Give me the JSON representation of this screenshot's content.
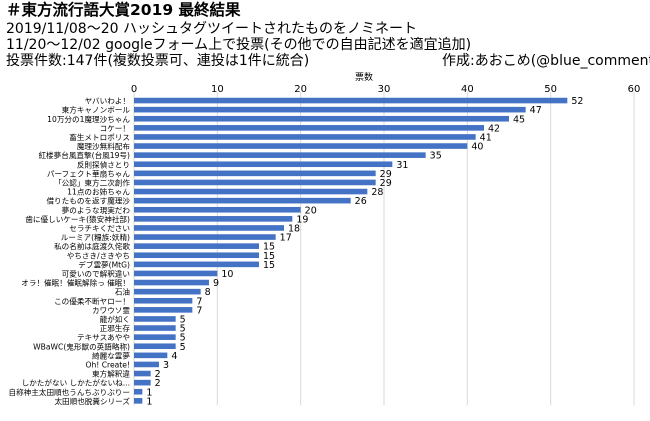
{
  "header": {
    "title": "＃東方流行語大賞2019 最終結果",
    "period": "2019/11/08〜20 ハッシュタグツイートされたものをノミネート",
    "voting": "11/20〜12/02 googleフォーム上で投票(その他での自由記述を適宜追加)",
    "count": "投票件数:147件(複数投票可、連投は1件に統合)",
    "author": "作成:あおこめ(@blue_comment)"
  },
  "colors": {
    "bar": "#4472c4",
    "grid": "#d9d9d9",
    "text": "#000000"
  },
  "chart_data": {
    "type": "bar",
    "orientation": "horizontal",
    "title": "",
    "xlabel": "票数",
    "ylabel": "",
    "xlim": [
      0,
      60
    ],
    "xticks": [
      0,
      10,
      20,
      30,
      40,
      50,
      60
    ],
    "x_axis_position": "top",
    "grid": true,
    "categories": [
      "ヤバいわよ！",
      "東方キャノンボール",
      "10万分の1魔理沙ちゃん",
      "コケー！",
      "畜生メトロポリス",
      "魔理沙無料配布",
      "紅楼夢台風直撃(台風19号)",
      "反則探偵さとり",
      "パーフェクト華扇ちゃん",
      "「公認」東方二次創作",
      "11点のお姉ちゃん",
      "借りたものを返す魔理沙",
      "夢のような現実だわ",
      "歯に優しいケーキ(猿安神社部)",
      "セラチキください",
      "ルーミア(糧族:妖精)",
      "私の名前は庭渡久侘歌",
      "やちさき/さきやち",
      "デブ霊夢(MtG)",
      "可愛いので解釈違い",
      "オラ！催眠！催眠解除っ 催眠！",
      "石油",
      "この優柔不断ヤロー！",
      "カワウソ霊",
      "龍が如く",
      "正邪生存",
      "テキサスあやや",
      "WBaWC(鬼形獣の英語略称)",
      "綺麗な霊夢",
      "Oh! Create!",
      "東方解釈違",
      "しかたがない しかたがないね...",
      "自称神主太田順也うんちぶりぶりー",
      "太田順也脱糞シリーズ"
    ],
    "values": [
      52,
      47,
      45,
      42,
      41,
      40,
      35,
      31,
      29,
      29,
      28,
      26,
      20,
      19,
      18,
      17,
      15,
      15,
      15,
      10,
      9,
      8,
      7,
      7,
      5,
      5,
      5,
      5,
      4,
      3,
      2,
      2,
      1,
      1
    ]
  }
}
